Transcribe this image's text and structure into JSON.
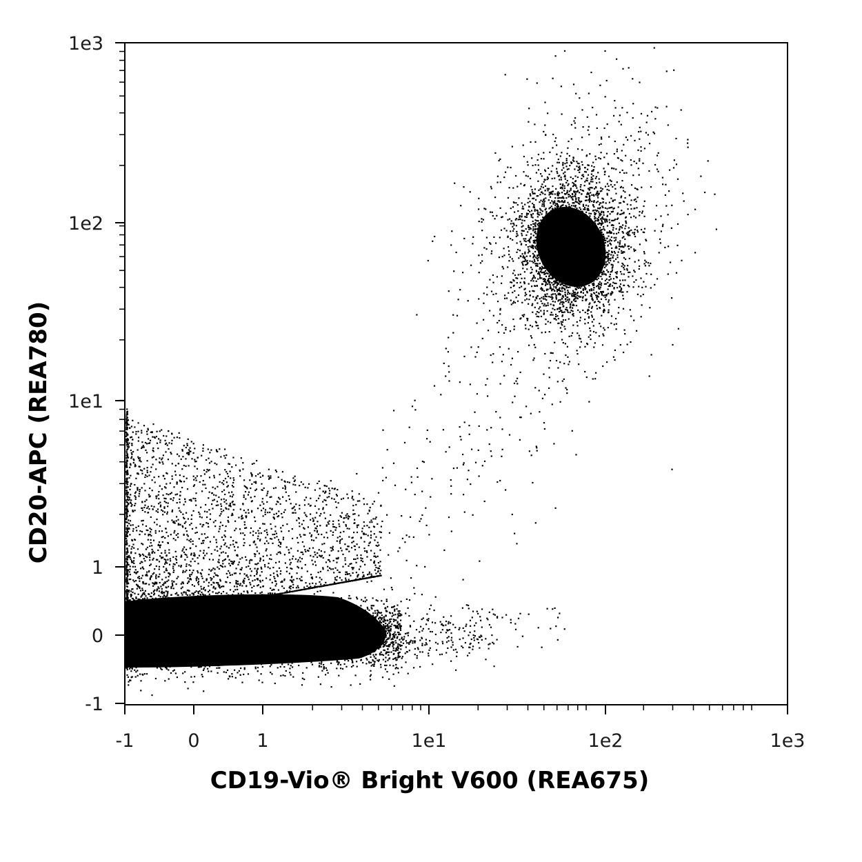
{
  "chart_data": {
    "type": "scatter",
    "xlabel": "CD19-Vio® Bright V600 (REA675)",
    "ylabel": "CD20-APC (REA780)",
    "x_scale": "biexponential (linear near zero, log above 1)",
    "y_scale": "biexponential (linear near zero, log above 1)",
    "xlim": [
      -1,
      1000
    ],
    "ylim": [
      -1,
      1000
    ],
    "x_ticks": [
      {
        "value": -1,
        "label": "-1"
      },
      {
        "value": 0,
        "label": "0"
      },
      {
        "value": 1,
        "label": "1"
      },
      {
        "value": 10,
        "label": "1e1"
      },
      {
        "value": 100,
        "label": "1e2"
      },
      {
        "value": 1000,
        "label": "1e3"
      }
    ],
    "y_ticks": [
      {
        "value": -1,
        "label": "-1"
      },
      {
        "value": 0,
        "label": "0"
      },
      {
        "value": 1,
        "label": "1"
      },
      {
        "value": 10,
        "label": "1e1"
      },
      {
        "value": 100,
        "label": "1e2"
      },
      {
        "value": 1000,
        "label": "1e3"
      }
    ],
    "grid": false,
    "legend": "none",
    "point_color": "#000000",
    "populations": [
      {
        "name": "",
        "x_center": 0.2,
        "y_center": 0.0,
        "description": "dense double-negative cluster along the baseline"
      },
      {
        "name": "",
        "x_center": 70,
        "y_center": 80,
        "description": "CD19+ CD20+ cluster"
      }
    ]
  }
}
